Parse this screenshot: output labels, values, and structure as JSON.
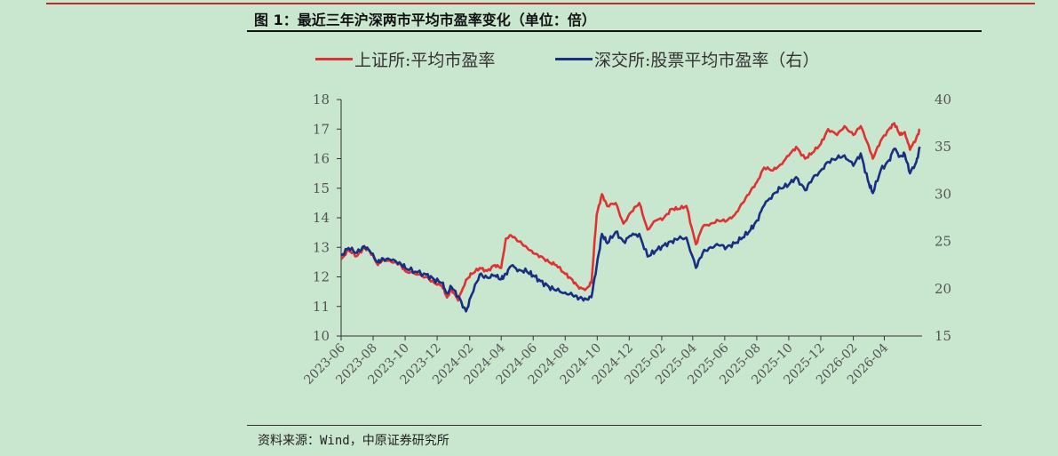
{
  "page": {
    "title": "图 1：最近三年沪深两市平均市盈率变化（单位：倍）",
    "source": "资料来源：Wind，中原证券研究所"
  },
  "colors": {
    "sh": "#e03133",
    "sz": "#1a2e82",
    "background": "#c9e6cf"
  },
  "chart_data": {
    "type": "line",
    "title": "",
    "legend_position": "top",
    "grid": false,
    "x_tick_labels": [
      "2023-06",
      "2023-08",
      "2023-10",
      "2023-12",
      "2024-02",
      "2024-04",
      "2024-06",
      "2024-08",
      "2024-10",
      "2024-12",
      "2025-02",
      "2025-04",
      "2025-06",
      "2025-08",
      "2025-10",
      "2025-12",
      "2026-02",
      "2026-04"
    ],
    "y_left": {
      "min": 10,
      "max": 18,
      "ticks": [
        10,
        11,
        12,
        13,
        14,
        15,
        16,
        17,
        18
      ]
    },
    "y_right": {
      "min": 15,
      "max": 40,
      "ticks": [
        15,
        20,
        25,
        30,
        35,
        40
      ]
    },
    "series": [
      {
        "name": "上证所:平均市盈率",
        "axis": "left",
        "points": [
          [
            "2023-06-01",
            12.6
          ],
          [
            "2023-06-15",
            12.9
          ],
          [
            "2023-07-01",
            12.7
          ],
          [
            "2023-07-15",
            13.0
          ],
          [
            "2023-07-25",
            12.9
          ],
          [
            "2023-08-10",
            12.4
          ],
          [
            "2023-08-20",
            12.6
          ],
          [
            "2023-09-05",
            12.5
          ],
          [
            "2023-09-20",
            12.45
          ],
          [
            "2023-10-01",
            12.2
          ],
          [
            "2023-10-20",
            12.1
          ],
          [
            "2023-11-10",
            12.0
          ],
          [
            "2023-11-25",
            11.8
          ],
          [
            "2023-12-10",
            11.7
          ],
          [
            "2023-12-20",
            11.3
          ],
          [
            "2023-12-28",
            11.6
          ],
          [
            "2024-01-10",
            11.2
          ],
          [
            "2024-01-25",
            11.9
          ],
          [
            "2024-02-05",
            12.1
          ],
          [
            "2024-02-20",
            12.3
          ],
          [
            "2024-03-05",
            12.2
          ],
          [
            "2024-03-20",
            12.4
          ],
          [
            "2024-04-01",
            12.3
          ],
          [
            "2024-04-10",
            13.3
          ],
          [
            "2024-04-20",
            13.4
          ],
          [
            "2024-05-05",
            13.2
          ],
          [
            "2024-05-20",
            13.0
          ],
          [
            "2024-06-01",
            12.8
          ],
          [
            "2024-06-15",
            12.7
          ],
          [
            "2024-07-01",
            12.5
          ],
          [
            "2024-07-15",
            12.4
          ],
          [
            "2024-08-01",
            12.1
          ],
          [
            "2024-08-15",
            11.9
          ],
          [
            "2024-08-28",
            11.6
          ],
          [
            "2024-09-10",
            11.6
          ],
          [
            "2024-09-20",
            11.8
          ],
          [
            "2024-09-30",
            14.1
          ],
          [
            "2024-10-10",
            14.8
          ],
          [
            "2024-10-20",
            14.4
          ],
          [
            "2024-11-05",
            14.5
          ],
          [
            "2024-11-20",
            13.8
          ],
          [
            "2024-12-05",
            14.2
          ],
          [
            "2024-12-20",
            14.5
          ],
          [
            "2025-01-05",
            13.6
          ],
          [
            "2025-01-20",
            13.9
          ],
          [
            "2025-02-05",
            14.0
          ],
          [
            "2025-02-20",
            14.3
          ],
          [
            "2025-03-05",
            14.3
          ],
          [
            "2025-03-20",
            14.4
          ],
          [
            "2025-04-07",
            13.1
          ],
          [
            "2025-04-20",
            13.7
          ],
          [
            "2025-05-05",
            13.8
          ],
          [
            "2025-05-20",
            13.9
          ],
          [
            "2025-06-05",
            13.9
          ],
          [
            "2025-06-20",
            14.1
          ],
          [
            "2025-07-05",
            14.5
          ],
          [
            "2025-07-20",
            14.9
          ],
          [
            "2025-08-01",
            15.2
          ],
          [
            "2025-08-15",
            15.7
          ],
          [
            "2025-09-01",
            15.6
          ],
          [
            "2025-09-15",
            15.8
          ],
          [
            "2025-10-01",
            16.1
          ],
          [
            "2025-10-15",
            16.4
          ],
          [
            "2025-11-01",
            16.0
          ],
          [
            "2025-11-15",
            16.2
          ],
          [
            "2025-12-01",
            16.5
          ],
          [
            "2025-12-15",
            17.0
          ],
          [
            "2026-01-01",
            16.8
          ],
          [
            "2026-01-15",
            17.1
          ],
          [
            "2026-02-01",
            16.8
          ],
          [
            "2026-02-15",
            17.1
          ],
          [
            "2026-03-01",
            16.5
          ],
          [
            "2026-03-10",
            16.0
          ],
          [
            "2026-03-25",
            16.6
          ],
          [
            "2026-04-10",
            17.0
          ],
          [
            "2026-04-20",
            17.2
          ],
          [
            "2026-05-01",
            16.8
          ],
          [
            "2026-05-10",
            16.9
          ],
          [
            "2026-05-20",
            16.3
          ],
          [
            "2026-06-01",
            16.7
          ],
          [
            "2026-06-08",
            17.0
          ]
        ]
      },
      {
        "name": "深交所:股票平均市盈率（右）",
        "axis": "right",
        "points": [
          [
            "2023-06-01",
            23.5
          ],
          [
            "2023-06-15",
            24.3
          ],
          [
            "2023-07-01",
            23.8
          ],
          [
            "2023-07-15",
            24.5
          ],
          [
            "2023-07-25",
            24.0
          ],
          [
            "2023-08-10",
            22.8
          ],
          [
            "2023-08-20",
            23.2
          ],
          [
            "2023-09-05",
            23.0
          ],
          [
            "2023-09-20",
            22.8
          ],
          [
            "2023-10-01",
            22.2
          ],
          [
            "2023-10-20",
            21.8
          ],
          [
            "2023-11-10",
            21.5
          ],
          [
            "2023-11-25",
            21.0
          ],
          [
            "2023-12-10",
            20.6
          ],
          [
            "2023-12-20",
            19.5
          ],
          [
            "2023-12-28",
            20.2
          ],
          [
            "2024-01-10",
            19.2
          ],
          [
            "2024-01-25",
            17.6
          ],
          [
            "2024-02-05",
            19.4
          ],
          [
            "2024-02-20",
            21.5
          ],
          [
            "2024-03-05",
            21.2
          ],
          [
            "2024-03-20",
            21.4
          ],
          [
            "2024-04-01",
            21.0
          ],
          [
            "2024-04-10",
            21.6
          ],
          [
            "2024-04-20",
            22.4
          ],
          [
            "2024-05-05",
            22.0
          ],
          [
            "2024-05-20",
            21.8
          ],
          [
            "2024-06-01",
            21.4
          ],
          [
            "2024-06-15",
            20.8
          ],
          [
            "2024-07-01",
            20.2
          ],
          [
            "2024-07-15",
            19.8
          ],
          [
            "2024-08-01",
            19.6
          ],
          [
            "2024-08-15",
            19.3
          ],
          [
            "2024-08-28",
            19.0
          ],
          [
            "2024-09-10",
            18.9
          ],
          [
            "2024-09-20",
            19.1
          ],
          [
            "2024-09-30",
            22.4
          ],
          [
            "2024-10-10",
            25.8
          ],
          [
            "2024-10-20",
            24.8
          ],
          [
            "2024-11-05",
            26.0
          ],
          [
            "2024-11-20",
            25.0
          ],
          [
            "2024-12-05",
            25.6
          ],
          [
            "2024-12-20",
            25.8
          ],
          [
            "2025-01-05",
            23.4
          ],
          [
            "2025-01-20",
            24.0
          ],
          [
            "2025-02-05",
            24.6
          ],
          [
            "2025-02-20",
            25.0
          ],
          [
            "2025-03-05",
            25.3
          ],
          [
            "2025-03-20",
            25.4
          ],
          [
            "2025-04-07",
            22.2
          ],
          [
            "2025-04-20",
            23.8
          ],
          [
            "2025-05-05",
            24.4
          ],
          [
            "2025-05-20",
            24.6
          ],
          [
            "2025-06-05",
            24.4
          ],
          [
            "2025-06-20",
            24.8
          ],
          [
            "2025-07-05",
            25.4
          ],
          [
            "2025-07-20",
            26.2
          ],
          [
            "2025-08-01",
            27.2
          ],
          [
            "2025-08-15",
            28.8
          ],
          [
            "2025-09-01",
            30.0
          ],
          [
            "2025-09-15",
            30.6
          ],
          [
            "2025-10-01",
            31.0
          ],
          [
            "2025-10-15",
            31.8
          ],
          [
            "2025-11-01",
            30.4
          ],
          [
            "2025-11-15",
            31.6
          ],
          [
            "2025-12-01",
            32.5
          ],
          [
            "2025-12-15",
            33.4
          ],
          [
            "2026-01-01",
            33.8
          ],
          [
            "2026-01-15",
            34.1
          ],
          [
            "2026-02-01",
            33.0
          ],
          [
            "2026-02-15",
            34.3
          ],
          [
            "2026-03-01",
            31.4
          ],
          [
            "2026-03-10",
            30.1
          ],
          [
            "2026-03-25",
            32.5
          ],
          [
            "2026-04-10",
            33.6
          ],
          [
            "2026-04-20",
            34.8
          ],
          [
            "2026-05-01",
            34.0
          ],
          [
            "2026-05-10",
            34.2
          ],
          [
            "2026-05-20",
            32.2
          ],
          [
            "2026-06-01",
            33.4
          ],
          [
            "2026-06-08",
            35.0
          ]
        ]
      }
    ]
  }
}
